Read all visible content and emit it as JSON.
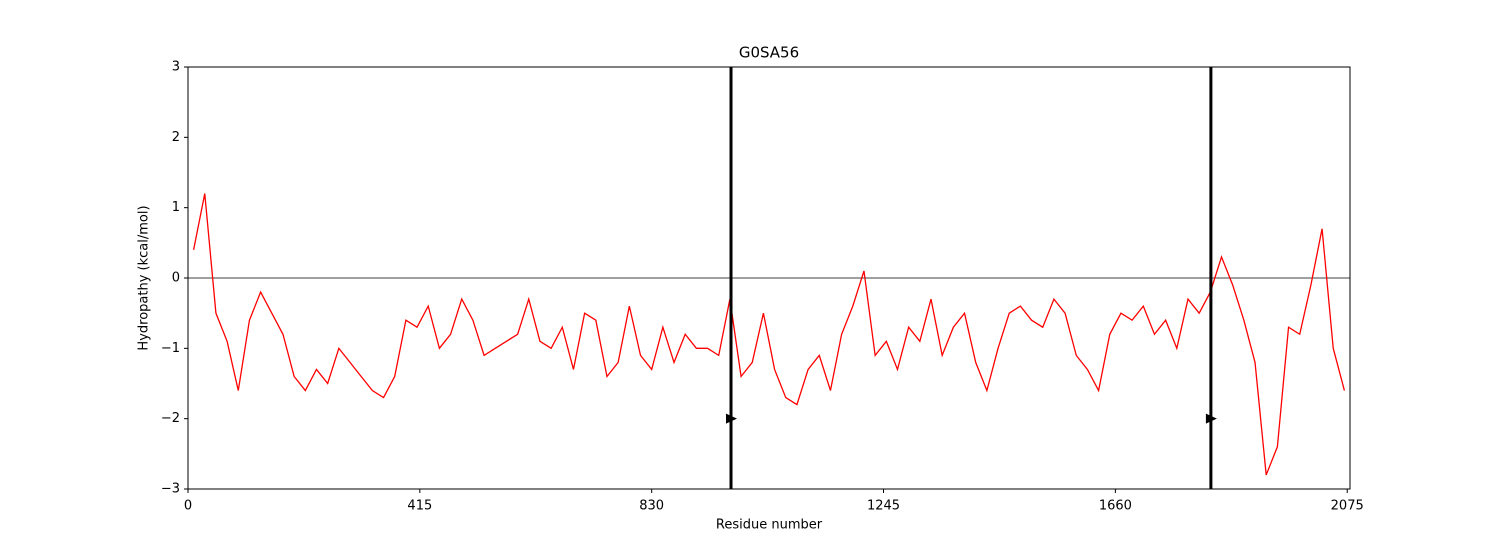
{
  "chart_data": {
    "type": "line",
    "title": "G0SA56",
    "xlabel": "Residue number",
    "ylabel": "Hydropathy (kcal/mol)",
    "x": [
      10,
      30,
      50,
      70,
      90,
      110,
      130,
      150,
      170,
      190,
      210,
      230,
      250,
      270,
      290,
      310,
      330,
      350,
      370,
      390,
      410,
      430,
      450,
      470,
      490,
      510,
      530,
      550,
      570,
      590,
      610,
      630,
      650,
      670,
      690,
      710,
      730,
      750,
      770,
      790,
      810,
      830,
      850,
      870,
      890,
      910,
      930,
      950,
      970,
      990,
      1010,
      1030,
      1050,
      1070,
      1090,
      1110,
      1130,
      1150,
      1170,
      1190,
      1210,
      1230,
      1250,
      1270,
      1290,
      1310,
      1330,
      1350,
      1370,
      1390,
      1410,
      1430,
      1450,
      1470,
      1490,
      1510,
      1530,
      1550,
      1570,
      1590,
      1610,
      1630,
      1650,
      1670,
      1690,
      1710,
      1730,
      1750,
      1770,
      1790,
      1810,
      1830,
      1850,
      1870,
      1890,
      1910,
      1930,
      1950,
      1970,
      1990,
      2010,
      2030,
      2050,
      2070
    ],
    "series": [
      {
        "color": "#ff0000",
        "values": [
          0.4,
          1.2,
          -0.5,
          -0.9,
          -1.6,
          -0.6,
          -0.2,
          -0.5,
          -0.8,
          -1.4,
          -1.6,
          -1.3,
          -1.5,
          -1.0,
          -1.2,
          -1.4,
          -1.6,
          -1.7,
          -1.4,
          -0.6,
          -0.7,
          -0.4,
          -1.0,
          -0.8,
          -0.3,
          -0.6,
          -1.1,
          -1.0,
          -0.9,
          -0.8,
          -0.3,
          -0.9,
          -1.0,
          -0.7,
          -1.3,
          -0.5,
          -0.6,
          -1.4,
          -1.2,
          -0.4,
          -1.1,
          -1.3,
          -0.7,
          -1.2,
          -0.8,
          -1.0,
          -1.0,
          -1.1,
          -0.3,
          -1.4,
          -1.2,
          -0.5,
          -1.3,
          -1.7,
          -1.8,
          -1.3,
          -1.1,
          -1.6,
          -0.8,
          -0.4,
          0.1,
          -1.1,
          -0.9,
          -1.3,
          -0.7,
          -0.9,
          -0.3,
          -1.1,
          -0.7,
          -0.5,
          -1.2,
          -1.6,
          -1.0,
          -0.5,
          -0.4,
          -0.6,
          -0.7,
          -0.3,
          -0.5,
          -1.1,
          -1.3,
          -1.6,
          -0.8,
          -0.5,
          -0.6,
          -0.4,
          -0.8,
          -0.6,
          -1.0,
          -0.3,
          -0.5,
          -0.2,
          0.3,
          -0.1,
          -0.6,
          -1.2,
          -2.8,
          -2.4,
          -0.7,
          -0.8,
          -0.1,
          0.7,
          -1.0,
          -1.6
        ]
      }
    ],
    "xlim": [
      0,
      2080
    ],
    "ylim": [
      -3,
      3
    ],
    "xticks": [
      0,
      415,
      830,
      1245,
      1660,
      2075
    ],
    "yticks": [
      {
        "value": -3,
        "label": "−3"
      },
      {
        "value": -2,
        "label": "−2"
      },
      {
        "value": -1,
        "label": "−1"
      },
      0,
      1,
      2,
      3
    ],
    "hline": 0,
    "vlines": [
      972,
      1831
    ],
    "vline_marker_y": -2
  }
}
